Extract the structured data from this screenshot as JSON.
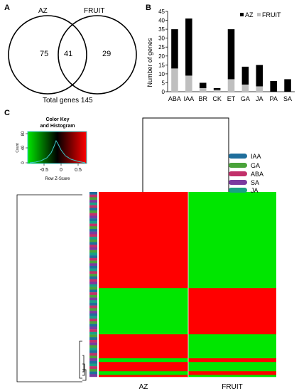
{
  "panels": {
    "a": "A",
    "b": "B",
    "c": "C"
  },
  "venn": {
    "left_label": "AZ",
    "right_label": "FRUIT",
    "left_only": "75",
    "overlap": "41",
    "right_only": "29",
    "total_text": "Total genes 145"
  },
  "colors": {
    "az": "#000000",
    "fruit": "#bfbfbf",
    "heat_high": "#ff0000",
    "heat_low": "#00e600",
    "IAA": "#1f6e9c",
    "GA": "#4aa33a",
    "ABA": "#c2306a",
    "SA": "#7b3aa0",
    "JA": "#1aa085"
  },
  "chart_data": [
    {
      "type": "bar",
      "stacked": true,
      "categories": [
        "ABA",
        "IAA",
        "BR",
        "CK",
        "ET",
        "GA",
        "JA",
        "PA",
        "SA"
      ],
      "series": [
        {
          "name": "FRUIT",
          "values": [
            13,
            9,
            2,
            1,
            7,
            4,
            3,
            0,
            0
          ]
        },
        {
          "name": "AZ",
          "values": [
            22,
            32,
            3,
            1,
            28,
            10,
            12,
            6,
            7
          ]
        }
      ],
      "ylabel": "Number of genes",
      "ylim": [
        0,
        45
      ],
      "yticks": [
        0,
        5,
        10,
        15,
        20,
        25,
        30,
        35,
        40,
        45
      ],
      "legend": "top-right"
    },
    {
      "type": "heatmap",
      "columns": [
        "AZ",
        "FRUIT"
      ],
      "color_key": {
        "title": "Color Key",
        "subtitle": "and Histogram",
        "xlabel": "Row Z-Score",
        "ylabel": "Count",
        "xticks": [
          "-0.5",
          "0",
          "0.5"
        ],
        "yticks": [
          "0",
          "40",
          "80"
        ]
      },
      "row_blocks": [
        {
          "az": "high",
          "fruit": "low",
          "weight": 1
        },
        {
          "az": "high",
          "fruit": "low",
          "weight": 51
        },
        {
          "az": "low",
          "fruit": "high",
          "weight": 25
        },
        {
          "az": "high",
          "fruit": "low",
          "weight": 13
        },
        {
          "az": "low",
          "fruit": "high",
          "weight": 2
        },
        {
          "az": "high",
          "fruit": "low",
          "weight": 5
        },
        {
          "az": "low",
          "fruit": "high",
          "weight": 2
        },
        {
          "az": "high",
          "fruit": "low",
          "weight": 1
        }
      ],
      "hormone_legend": [
        "IAA",
        "GA",
        "ABA",
        "SA",
        "JA"
      ]
    }
  ]
}
